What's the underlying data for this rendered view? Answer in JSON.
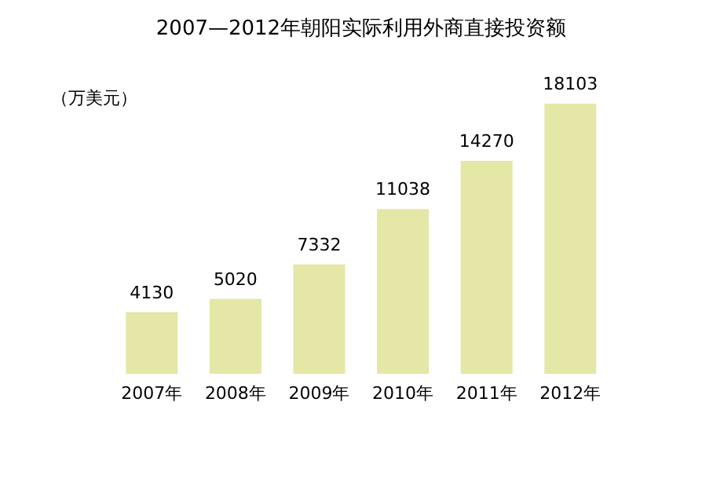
{
  "chart_data": {
    "type": "bar",
    "title": "2007—2012年朝阳实际利用外商直接投资额",
    "ylabel": "（万美元）",
    "categories": [
      "2007年",
      "2008年",
      "2009年",
      "2010年",
      "2011年",
      "2012年"
    ],
    "values": [
      4130,
      5020,
      7332,
      11038,
      14270,
      18103
    ],
    "color": "#e4e7a6",
    "data_labels": true
  }
}
